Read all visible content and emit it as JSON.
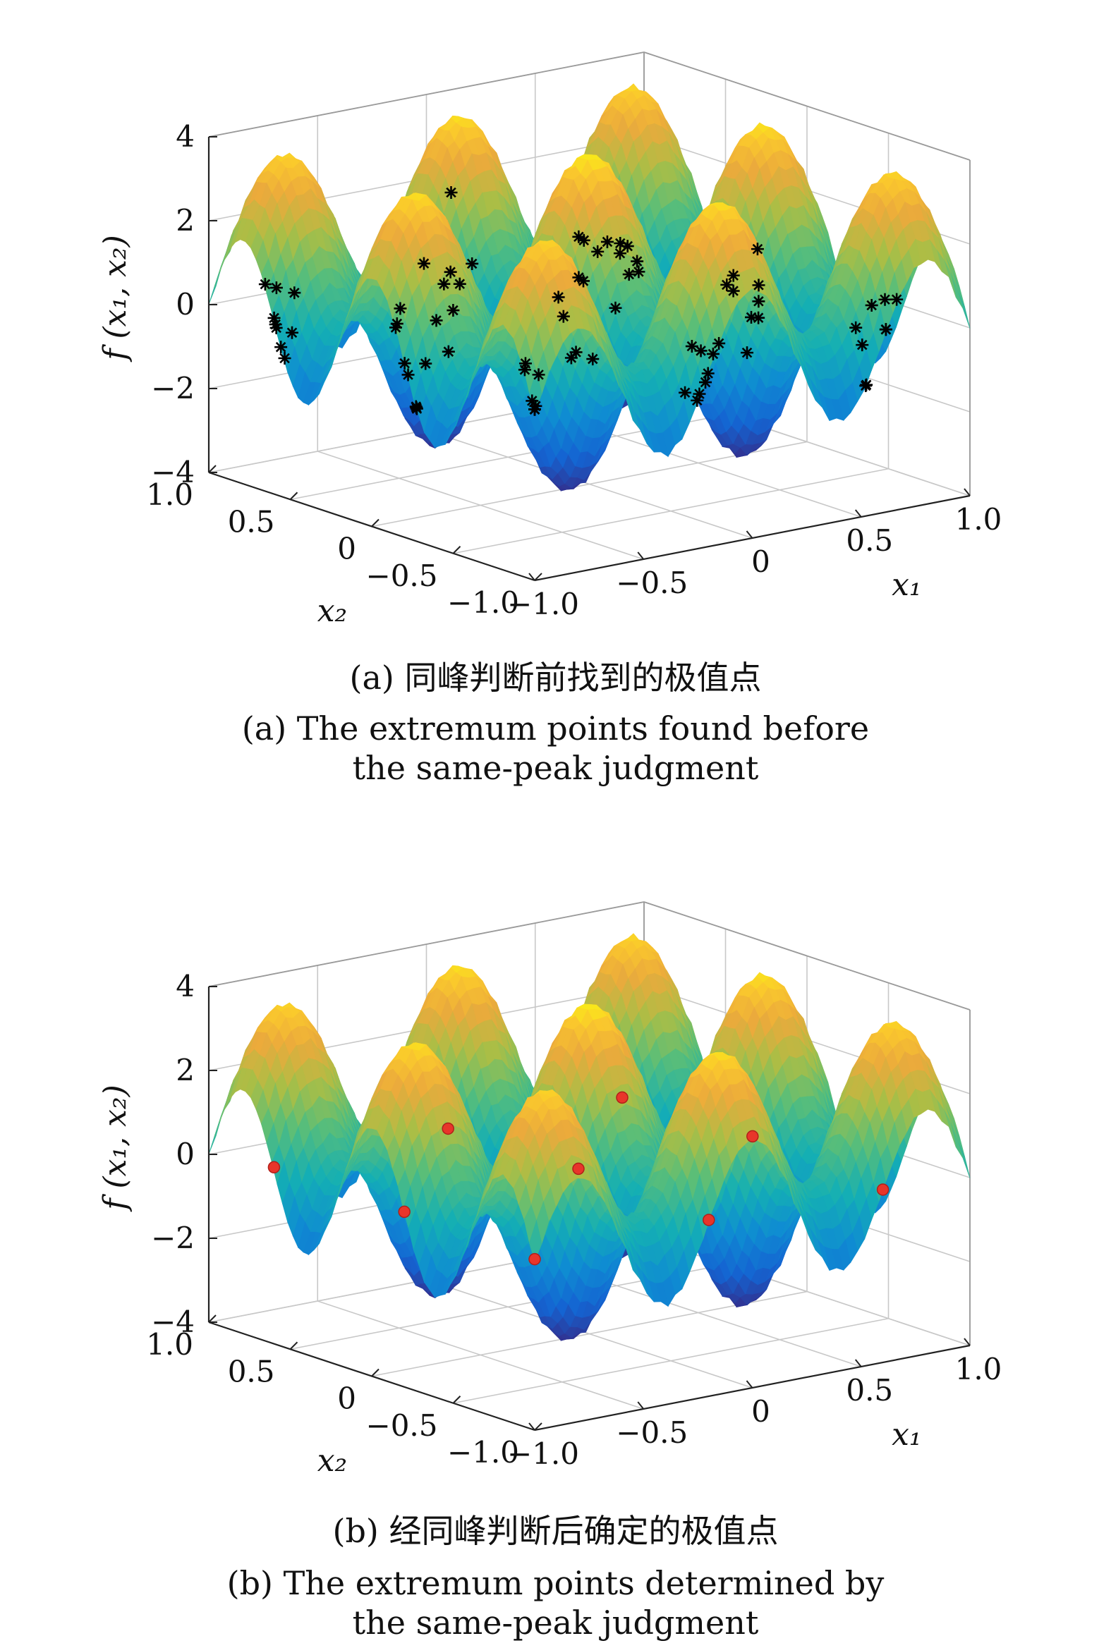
{
  "chart_data": [
    {
      "panel": "a",
      "type": "surface3d",
      "caption_zh": "(a) 同峰判断前找到的极值点",
      "caption_en_line1": "(a) The extremum points found before",
      "caption_en_line2": "the same-peak judgment",
      "xlabel": "x₁",
      "ylabel": "x₂",
      "zlabel": "f (x₁, x₂)",
      "xlim": [
        -1.0,
        1.0
      ],
      "ylim": [
        -1.0,
        1.0
      ],
      "zlim": [
        -4,
        4
      ],
      "x_ticks": [
        "−1.0",
        "−0.5",
        "0",
        "0.5",
        "1.0"
      ],
      "y_ticks": [
        "−1.0",
        "−0.5",
        "0",
        "0.5",
        "1.0"
      ],
      "z_ticks": [
        "−4",
        "−2",
        "0",
        "2",
        "4"
      ],
      "grid": true,
      "colormap": "parula",
      "peak_grid": 6,
      "marker": "asterisk",
      "marker_color": "#000000",
      "markers_per_peak": 9
    },
    {
      "panel": "b",
      "type": "surface3d",
      "caption_zh": "(b) 经同峰判断后确定的极值点",
      "caption_en_line1": "(b) The extremum points determined by",
      "caption_en_line2": "the same-peak judgment",
      "xlabel": "x₁",
      "ylabel": "x₂",
      "zlabel": "f (x₁, x₂)",
      "xlim": [
        -1.0,
        1.0
      ],
      "ylim": [
        -1.0,
        1.0
      ],
      "zlim": [
        -4,
        4
      ],
      "x_ticks": [
        "−1.0",
        "−0.5",
        "0",
        "0.5",
        "1.0"
      ],
      "y_ticks": [
        "−1.0",
        "−0.5",
        "0",
        "0.5",
        "1.0"
      ],
      "z_ticks": [
        "−4",
        "−2",
        "0",
        "2",
        "4"
      ],
      "grid": true,
      "colormap": "parula",
      "peak_grid": 6,
      "marker": "dot",
      "marker_color": "#e8352a",
      "markers_per_peak": 1
    }
  ]
}
